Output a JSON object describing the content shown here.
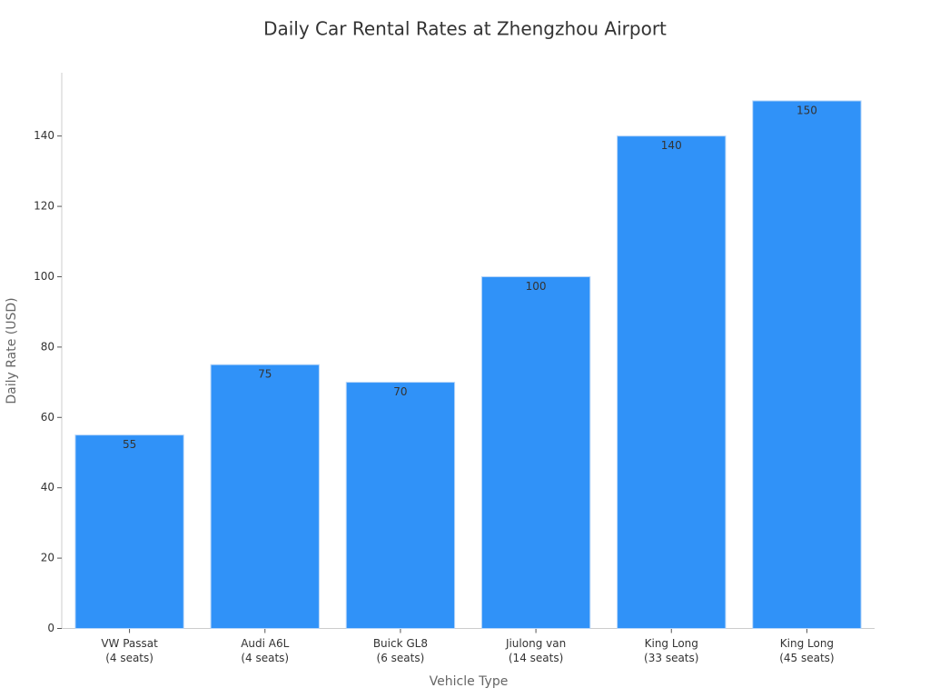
{
  "chart_data": {
    "type": "bar",
    "title": "Daily Car Rental Rates at Zhengzhou Airport",
    "x_label": "Vehicle Type",
    "y_label": "Daily Rate (USD)",
    "categories": [
      "VW Passat\n(4 seats)",
      "Audi A6L\n(4 seats)",
      "Buick GL8\n(6 seats)",
      "Jiulong van\n(14 seats)",
      "King Long\n(33 seats)",
      "King Long\n(45 seats)"
    ],
    "values": [
      55,
      75,
      70,
      100,
      140,
      150
    ],
    "color": "#3092f8",
    "ylim": [
      0,
      158
    ],
    "yticks": [
      0,
      20,
      40,
      60,
      80,
      100,
      120,
      140
    ],
    "grid": false
  }
}
